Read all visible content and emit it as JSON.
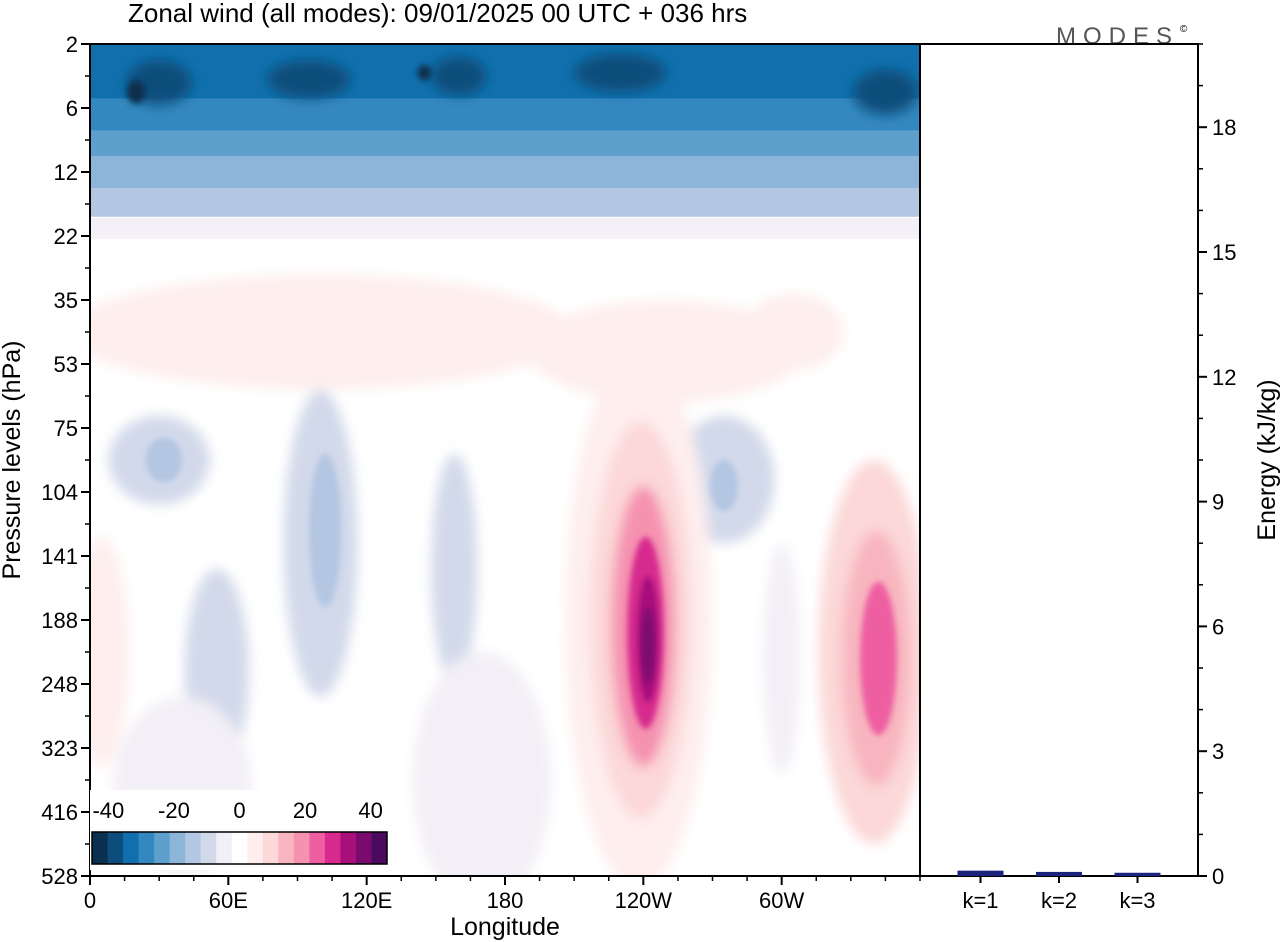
{
  "header": {
    "title": "Zonal wind (all modes):  09/01/2025  00 UTC  + 036 hrs",
    "logo": "MODES",
    "logo_mark": "©"
  },
  "chart_data": [
    {
      "type": "heatmap",
      "title": "Zonal wind (all modes):  09/01/2025  00 UTC  + 036 hrs",
      "xlabel": "Longitude",
      "ylabel": "Pressure levels (hPa)",
      "x_ticks": [
        "0",
        "60E",
        "120E",
        "180",
        "120W",
        "60W"
      ],
      "x_tick_values": [
        0,
        60,
        120,
        180,
        240,
        300
      ],
      "xlim": [
        0,
        360
      ],
      "y_ticks": [
        "2",
        "6",
        "12",
        "22",
        "35",
        "53",
        "75",
        "104",
        "141",
        "188",
        "248",
        "323",
        "416",
        "528"
      ],
      "y_axis": "pressure levels, increasing downward",
      "colorbar": {
        "tick_labels": [
          "-40",
          "-20",
          "0",
          "20",
          "40"
        ],
        "levels": [
          -45,
          -40,
          -35,
          -30,
          -25,
          -20,
          -15,
          -10,
          -5,
          0,
          5,
          10,
          15,
          20,
          25,
          30,
          35,
          40,
          45
        ],
        "colors": [
          "#0b2f4e",
          "#0c4d7c",
          "#1070ad",
          "#3488c0",
          "#5d9fcd",
          "#8db5d8",
          "#b3c6e2",
          "#d2d9ea",
          "#f3eff6",
          "#ffffff",
          "#feeeee",
          "#fcd8d8",
          "#f8b5bf",
          "#f592b0",
          "#ee5fa1",
          "#d72c8e",
          "#a80f7b",
          "#7a0a6e",
          "#4a0a5e"
        ]
      },
      "features": [
        {
          "region": "upper stratosphere (2-12 hPa), all longitudes",
          "value": -32
        },
        {
          "region": "22-75 hPa band",
          "value": 6
        },
        {
          "region": "jet core near 120W, 141-248 hPa",
          "value": 42
        },
        {
          "region": "jet core near 20W, 141-248 hPa",
          "value": 28
        },
        {
          "region": "easterlies near 30E, 75-104 hPa",
          "value": -14
        },
        {
          "region": "easterlies near 100E, 104-248 hPa",
          "value": -13
        },
        {
          "region": "easterlies near 85W, 75-104 hPa",
          "value": -14
        }
      ]
    },
    {
      "type": "bar",
      "categories": [
        "k=1",
        "k=2",
        "k=3"
      ],
      "values": [
        0.08,
        0.05,
        0.03
      ],
      "ylabel": "Energy (kJ/kg)",
      "y_ticks": [
        "0",
        "3",
        "6",
        "9",
        "12",
        "15",
        "18"
      ],
      "ylim": [
        0,
        20
      ],
      "bar_color": "#1a237e"
    }
  ]
}
